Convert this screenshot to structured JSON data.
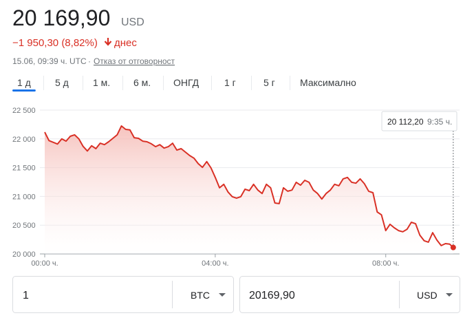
{
  "header": {
    "price": "20 169,90",
    "currency": "USD",
    "change": "−1 950,30 (8,82%)",
    "period": "днес",
    "timestamp": "15.06, 09:39 ч. UTC",
    "separator": "·",
    "disclaimer": "Отказ от отговорност"
  },
  "tabs": {
    "labels": [
      "1 д",
      "5 д",
      "1 м.",
      "6 м.",
      "ОНГД",
      "1 г",
      "5 г",
      "Максимално"
    ],
    "selected": 0
  },
  "chart_data": {
    "type": "line",
    "color": "#d93025",
    "x": [
      0,
      6,
      12,
      18,
      24,
      30,
      36,
      42,
      48,
      54,
      60,
      66,
      72,
      78,
      84,
      90,
      96,
      102,
      108,
      114,
      120,
      126,
      132,
      138,
      144,
      150,
      156,
      162,
      168,
      174,
      180,
      186,
      192,
      198,
      204,
      210,
      216,
      222,
      228,
      234,
      240,
      246,
      252,
      258,
      264,
      270,
      276,
      282,
      288,
      294,
      300,
      306,
      312,
      318,
      324,
      330,
      336,
      342,
      348,
      354,
      360,
      366,
      372,
      378,
      384,
      390,
      396,
      402,
      408,
      414,
      420,
      426,
      432,
      438,
      444,
      450,
      456,
      462,
      468,
      474,
      480,
      486,
      492,
      498,
      504,
      510,
      516,
      522,
      528,
      534,
      540,
      546,
      552,
      558,
      564,
      570,
      575
    ],
    "values": [
      22117,
      21970,
      21940,
      21910,
      22000,
      21960,
      22045,
      22070,
      22000,
      21870,
      21790,
      21880,
      21830,
      21925,
      21900,
      21950,
      22010,
      22070,
      22225,
      22165,
      22155,
      22020,
      22010,
      21960,
      21950,
      21915,
      21865,
      21900,
      21840,
      21865,
      21925,
      21805,
      21830,
      21770,
      21710,
      21665,
      21570,
      21505,
      21605,
      21495,
      21330,
      21150,
      21210,
      21075,
      20995,
      20970,
      20995,
      21125,
      21100,
      21210,
      21110,
      21050,
      21210,
      21150,
      20885,
      20875,
      21150,
      21090,
      21110,
      21245,
      21195,
      21280,
      21245,
      21110,
      21050,
      20955,
      21050,
      21110,
      21210,
      21185,
      21305,
      21330,
      21245,
      21230,
      21305,
      21220,
      21090,
      21065,
      20730,
      20680,
      20405,
      20515,
      20455,
      20405,
      20385,
      20430,
      20550,
      20525,
      20325,
      20230,
      20205,
      20370,
      20240,
      20145,
      20180,
      20170,
      20112.2
    ],
    "xlim": [
      0,
      580
    ],
    "xticks": [
      {
        "value": 0,
        "label": "00:00 ч."
      },
      {
        "value": 240,
        "label": "04:00 ч."
      },
      {
        "value": 480,
        "label": "08:00 ч."
      }
    ],
    "ylim": [
      20000,
      22500
    ],
    "yticks": [
      {
        "value": 20000,
        "label": "20 000"
      },
      {
        "value": 20500,
        "label": "20 500"
      },
      {
        "value": 21000,
        "label": "21 000"
      },
      {
        "value": 21500,
        "label": "21 500"
      },
      {
        "value": 22000,
        "label": "22 000"
      },
      {
        "value": 22500,
        "label": "22 500"
      }
    ],
    "grid": true,
    "tooltip": {
      "value": "20 112,20",
      "time": "9:35 ч."
    }
  },
  "converter": {
    "amount": "1",
    "from": "BTC",
    "result": "20169,90",
    "to": "USD"
  }
}
